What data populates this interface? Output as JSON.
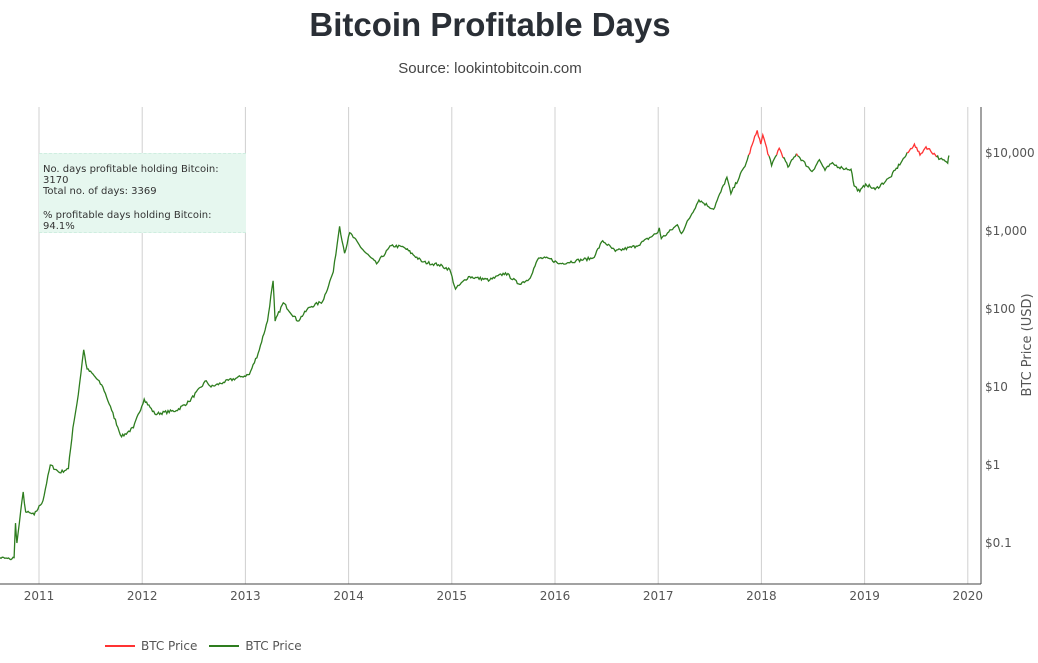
{
  "title": "Bitcoin Profitable Days",
  "subtitle": "Source: lookintobitcoin.com",
  "annotation": {
    "line1": "No. days profitable holding Bitcoin: 3170",
    "line2": "Total no. of days: 3369",
    "line3": "% profitable days holding Bitcoin: 94.1%"
  },
  "chart_data": {
    "type": "line",
    "title": "Bitcoin Profitable Days",
    "ylabel": "BTC Price (USD)",
    "yscale": "log",
    "yaxis_side": "right",
    "xlim": [
      "2010-07-18",
      "2020-03-01"
    ],
    "ylim": [
      0.03,
      39000
    ],
    "grid": "vertical",
    "x_ticks": [
      "2011",
      "2012",
      "2013",
      "2014",
      "2015",
      "2016",
      "2017",
      "2018",
      "2019",
      "2020"
    ],
    "y_ticks": [
      {
        "value": 0.1,
        "label": "$0.1"
      },
      {
        "value": 1,
        "label": "$1"
      },
      {
        "value": 10,
        "label": "$10"
      },
      {
        "value": 100,
        "label": "$100"
      },
      {
        "value": 1000,
        "label": "$1,000"
      },
      {
        "value": 10000,
        "label": "$10,000"
      }
    ],
    "legend_placement": "bottom-left",
    "series": [
      {
        "name": "BTC Price",
        "color": "#ff3333",
        "role": "unprofitable"
      },
      {
        "name": "BTC Price",
        "color": "#2e7d1f",
        "role": "profitable"
      }
    ],
    "price": [
      [
        "2010-07-18",
        0.065
      ],
      [
        "2010-08-15",
        0.065
      ],
      [
        "2010-09-20",
        0.062
      ],
      [
        "2010-10-05",
        0.065
      ],
      [
        "2010-10-10",
        0.18
      ],
      [
        "2010-10-15",
        0.1
      ],
      [
        "2010-11-06",
        0.45
      ],
      [
        "2010-11-15",
        0.25
      ],
      [
        "2010-12-15",
        0.23
      ],
      [
        "2011-01-15",
        0.35
      ],
      [
        "2011-02-10",
        1.0
      ],
      [
        "2011-03-15",
        0.8
      ],
      [
        "2011-04-15",
        0.9
      ],
      [
        "2011-05-01",
        3
      ],
      [
        "2011-05-20",
        8
      ],
      [
        "2011-06-08",
        30
      ],
      [
        "2011-06-20",
        17
      ],
      [
        "2011-07-15",
        14
      ],
      [
        "2011-08-15",
        10
      ],
      [
        "2011-09-15",
        5
      ],
      [
        "2011-10-20",
        2.3
      ],
      [
        "2011-12-01",
        3
      ],
      [
        "2012-01-08",
        7
      ],
      [
        "2012-02-15",
        4.5
      ],
      [
        "2012-05-01",
        5
      ],
      [
        "2012-06-15",
        6.5
      ],
      [
        "2012-08-15",
        12
      ],
      [
        "2012-09-01",
        10
      ],
      [
        "2012-10-15",
        11.5
      ],
      [
        "2012-12-15",
        13.5
      ],
      [
        "2013-01-15",
        14.5
      ],
      [
        "2013-02-15",
        27
      ],
      [
        "2013-03-20",
        70
      ],
      [
        "2013-04-09",
        230
      ],
      [
        "2013-04-16",
        70
      ],
      [
        "2013-05-15",
        120
      ],
      [
        "2013-07-05",
        70
      ],
      [
        "2013-08-15",
        105
      ],
      [
        "2013-10-01",
        125
      ],
      [
        "2013-11-08",
        300
      ],
      [
        "2013-11-30",
        1150
      ],
      [
        "2013-12-18",
        520
      ],
      [
        "2014-01-05",
        950
      ],
      [
        "2014-02-25",
        550
      ],
      [
        "2014-04-10",
        380
      ],
      [
        "2014-06-01",
        650
      ],
      [
        "2014-07-15",
        620
      ],
      [
        "2014-09-20",
        400
      ],
      [
        "2014-11-15",
        370
      ],
      [
        "2014-12-25",
        320
      ],
      [
        "2015-01-14",
        180
      ],
      [
        "2015-03-01",
        260
      ],
      [
        "2015-05-15",
        235
      ],
      [
        "2015-07-10",
        290
      ],
      [
        "2015-08-25",
        210
      ],
      [
        "2015-10-01",
        240
      ],
      [
        "2015-11-04",
        450
      ],
      [
        "2015-12-15",
        440
      ],
      [
        "2016-01-15",
        380
      ],
      [
        "2016-03-15",
        415
      ],
      [
        "2016-05-15",
        450
      ],
      [
        "2016-06-18",
        750
      ],
      [
        "2016-08-02",
        550
      ],
      [
        "2016-10-15",
        640
      ],
      [
        "2016-12-31",
        960
      ],
      [
        "2017-01-05",
        1100
      ],
      [
        "2017-01-12",
        800
      ],
      [
        "2017-03-10",
        1200
      ],
      [
        "2017-03-24",
        930
      ],
      [
        "2017-05-25",
        2500
      ],
      [
        "2017-07-16",
        1900
      ],
      [
        "2017-09-01",
        4900
      ],
      [
        "2017-09-15",
        3000
      ],
      [
        "2017-11-08",
        7400
      ],
      [
        "2017-12-17",
        19500
      ],
      [
        "2017-12-30",
        13000
      ],
      [
        "2018-01-06",
        17000
      ],
      [
        "2018-02-06",
        6900
      ],
      [
        "2018-03-05",
        11500
      ],
      [
        "2018-04-05",
        6600
      ],
      [
        "2018-05-05",
        9800
      ],
      [
        "2018-06-29",
        5800
      ],
      [
        "2018-07-25",
        8200
      ],
      [
        "2018-08-14",
        6000
      ],
      [
        "2018-09-05",
        7300
      ],
      [
        "2018-10-15",
        6400
      ],
      [
        "2018-11-14",
        6200
      ],
      [
        "2018-11-25",
        3800
      ],
      [
        "2018-12-15",
        3200
      ],
      [
        "2019-01-05",
        4000
      ],
      [
        "2019-02-07",
        3400
      ],
      [
        "2019-04-02",
        4900
      ],
      [
        "2019-05-14",
        8000
      ],
      [
        "2019-06-26",
        13000
      ],
      [
        "2019-07-16",
        9400
      ],
      [
        "2019-08-06",
        12000
      ],
      [
        "2019-09-25",
        8400
      ],
      [
        "2019-10-22",
        7400
      ],
      [
        "2019-10-26",
        9300
      ]
    ]
  }
}
